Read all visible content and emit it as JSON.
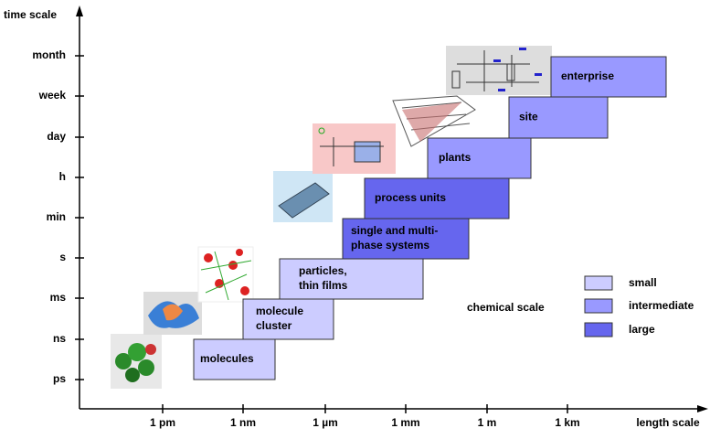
{
  "axes": {
    "y_label": "time scale",
    "y_ticks": [
      "ps",
      "ns",
      "ms",
      "s",
      "min",
      "h",
      "day",
      "week",
      "month"
    ],
    "x_label": "length scale",
    "x_ticks": [
      "1 pm",
      "1 nm",
      "1 µm",
      "1 mm",
      "1 m",
      "1 km"
    ]
  },
  "boxes": [
    {
      "lines": [
        "molecules"
      ],
      "scale": "small"
    },
    {
      "lines": [
        "molecule",
        "cluster"
      ],
      "scale": "small"
    },
    {
      "lines": [
        "particles,",
        "thin films"
      ],
      "scale": "small"
    },
    {
      "lines": [
        "single and multi-",
        "phase systems"
      ],
      "scale": "large"
    },
    {
      "lines": [
        "process units"
      ],
      "scale": "large"
    },
    {
      "lines": [
        "plants"
      ],
      "scale": "intermediate"
    },
    {
      "lines": [
        "site"
      ],
      "scale": "intermediate"
    },
    {
      "lines": [
        "enterprise"
      ],
      "scale": "intermediate"
    }
  ],
  "legend": {
    "title": "chemical scale",
    "items": [
      {
        "label": "small",
        "color": "#ccccff"
      },
      {
        "label": "intermediate",
        "color": "#9999ff"
      },
      {
        "label": "large",
        "color": "#6666ee"
      }
    ]
  }
}
